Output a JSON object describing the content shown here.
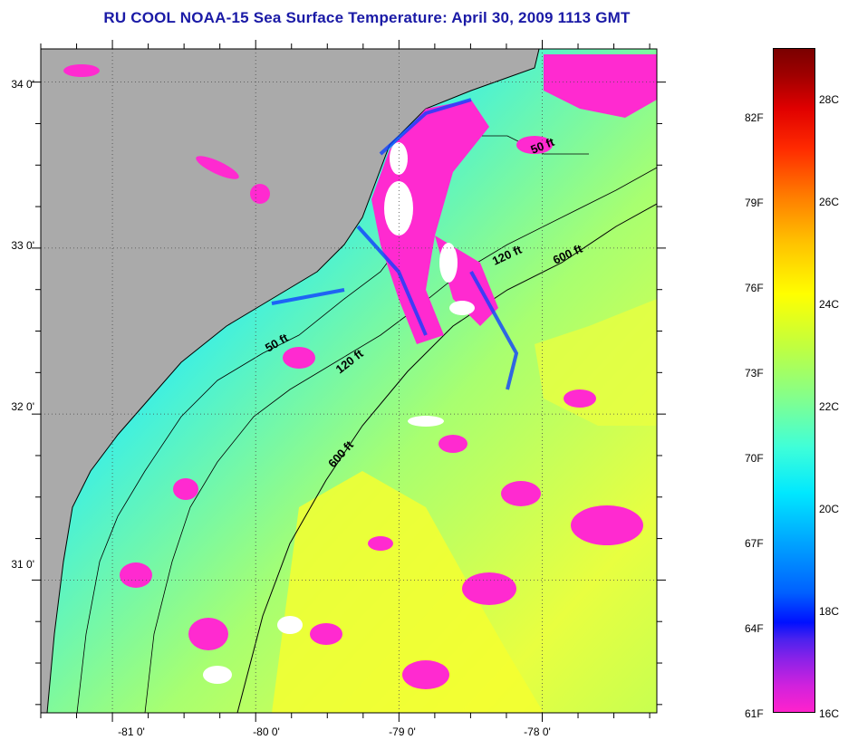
{
  "title": "RU COOL  NOAA-15  Sea Surface Temperature:  April 30, 2009 1113 GMT",
  "map": {
    "lon_range": [
      -81.5,
      -77.2
    ],
    "lat_range": [
      30.2,
      34.2
    ],
    "x_ticks": [
      {
        "value": -81,
        "label": "-81 0'"
      },
      {
        "value": -80,
        "label": "-80 0'"
      },
      {
        "value": -79,
        "label": "-79 0'"
      },
      {
        "value": -78,
        "label": "-78 0'"
      }
    ],
    "y_ticks": [
      {
        "value": 34,
        "label": "34 0'"
      },
      {
        "value": 33,
        "label": "33 0'"
      },
      {
        "value": 32,
        "label": "32 0'"
      },
      {
        "value": 31,
        "label": "31 0'"
      }
    ],
    "contour_labels": [
      "50 ft",
      "120 ft",
      "600 ft",
      "50 ft",
      "120 ft",
      "600 ft"
    ],
    "colors": {
      "land": "#aaaaaa",
      "cool_patch": "#ff2ad0",
      "cloud": "#ffffff",
      "water_cyan": "#28e0ff",
      "water_green": "#a8ff60",
      "water_yellow": "#f0ff30"
    }
  },
  "colorbar": {
    "min_c": 16,
    "max_c": 29,
    "fahrenheit_labels": [
      "82F",
      "79F",
      "76F",
      "73F",
      "70F",
      "67F",
      "64F",
      "61F"
    ],
    "celsius_labels": [
      "28C",
      "26C",
      "24C",
      "22C",
      "20C",
      "18C",
      "16C"
    ]
  }
}
